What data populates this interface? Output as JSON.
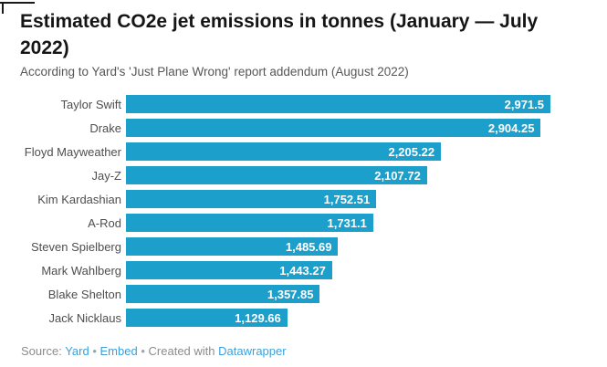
{
  "header": {
    "title": "Estimated CO2e jet emissions in tonnes (January — July 2022)",
    "subtitle": "According to Yard's 'Just Plane Wrong' report addendum (August 2022)"
  },
  "chart_data": {
    "type": "bar",
    "orientation": "horizontal",
    "title": "Estimated CO2e jet emissions in tonnes (January — July 2022)",
    "subtitle": "According to Yard's 'Just Plane Wrong' report addendum (August 2022)",
    "categories": [
      "Taylor Swift",
      "Drake",
      "Floyd Mayweather",
      "Jay-Z",
      "Kim Kardashian",
      "A-Rod",
      "Steven Spielberg",
      "Mark Wahlberg",
      "Blake Shelton",
      "Jack Nicklaus"
    ],
    "values": [
      2971.5,
      2904.25,
      2205.22,
      2107.72,
      1752.51,
      1731.1,
      1485.69,
      1443.27,
      1357.85,
      1129.66
    ],
    "value_labels": [
      "2,971.5",
      "2,904.25",
      "2,205.22",
      "2,107.72",
      "1,752.51",
      "1,731.1",
      "1,485.69",
      "1,443.27",
      "1,357.85",
      "1,129.66"
    ],
    "xlabel": "",
    "ylabel": "",
    "xlim": [
      0,
      2971.5
    ],
    "grid": false,
    "legend": false,
    "bar_color": "#1c9fcb",
    "value_label_color": "#ffffff",
    "category_label_color": "#4e4e4e"
  },
  "footer": {
    "source_label": "Source:",
    "source_link": "Yard",
    "separator": "•",
    "embed_link": "Embed",
    "created_with_label": "Created with",
    "tool_link": "Datawrapper"
  }
}
